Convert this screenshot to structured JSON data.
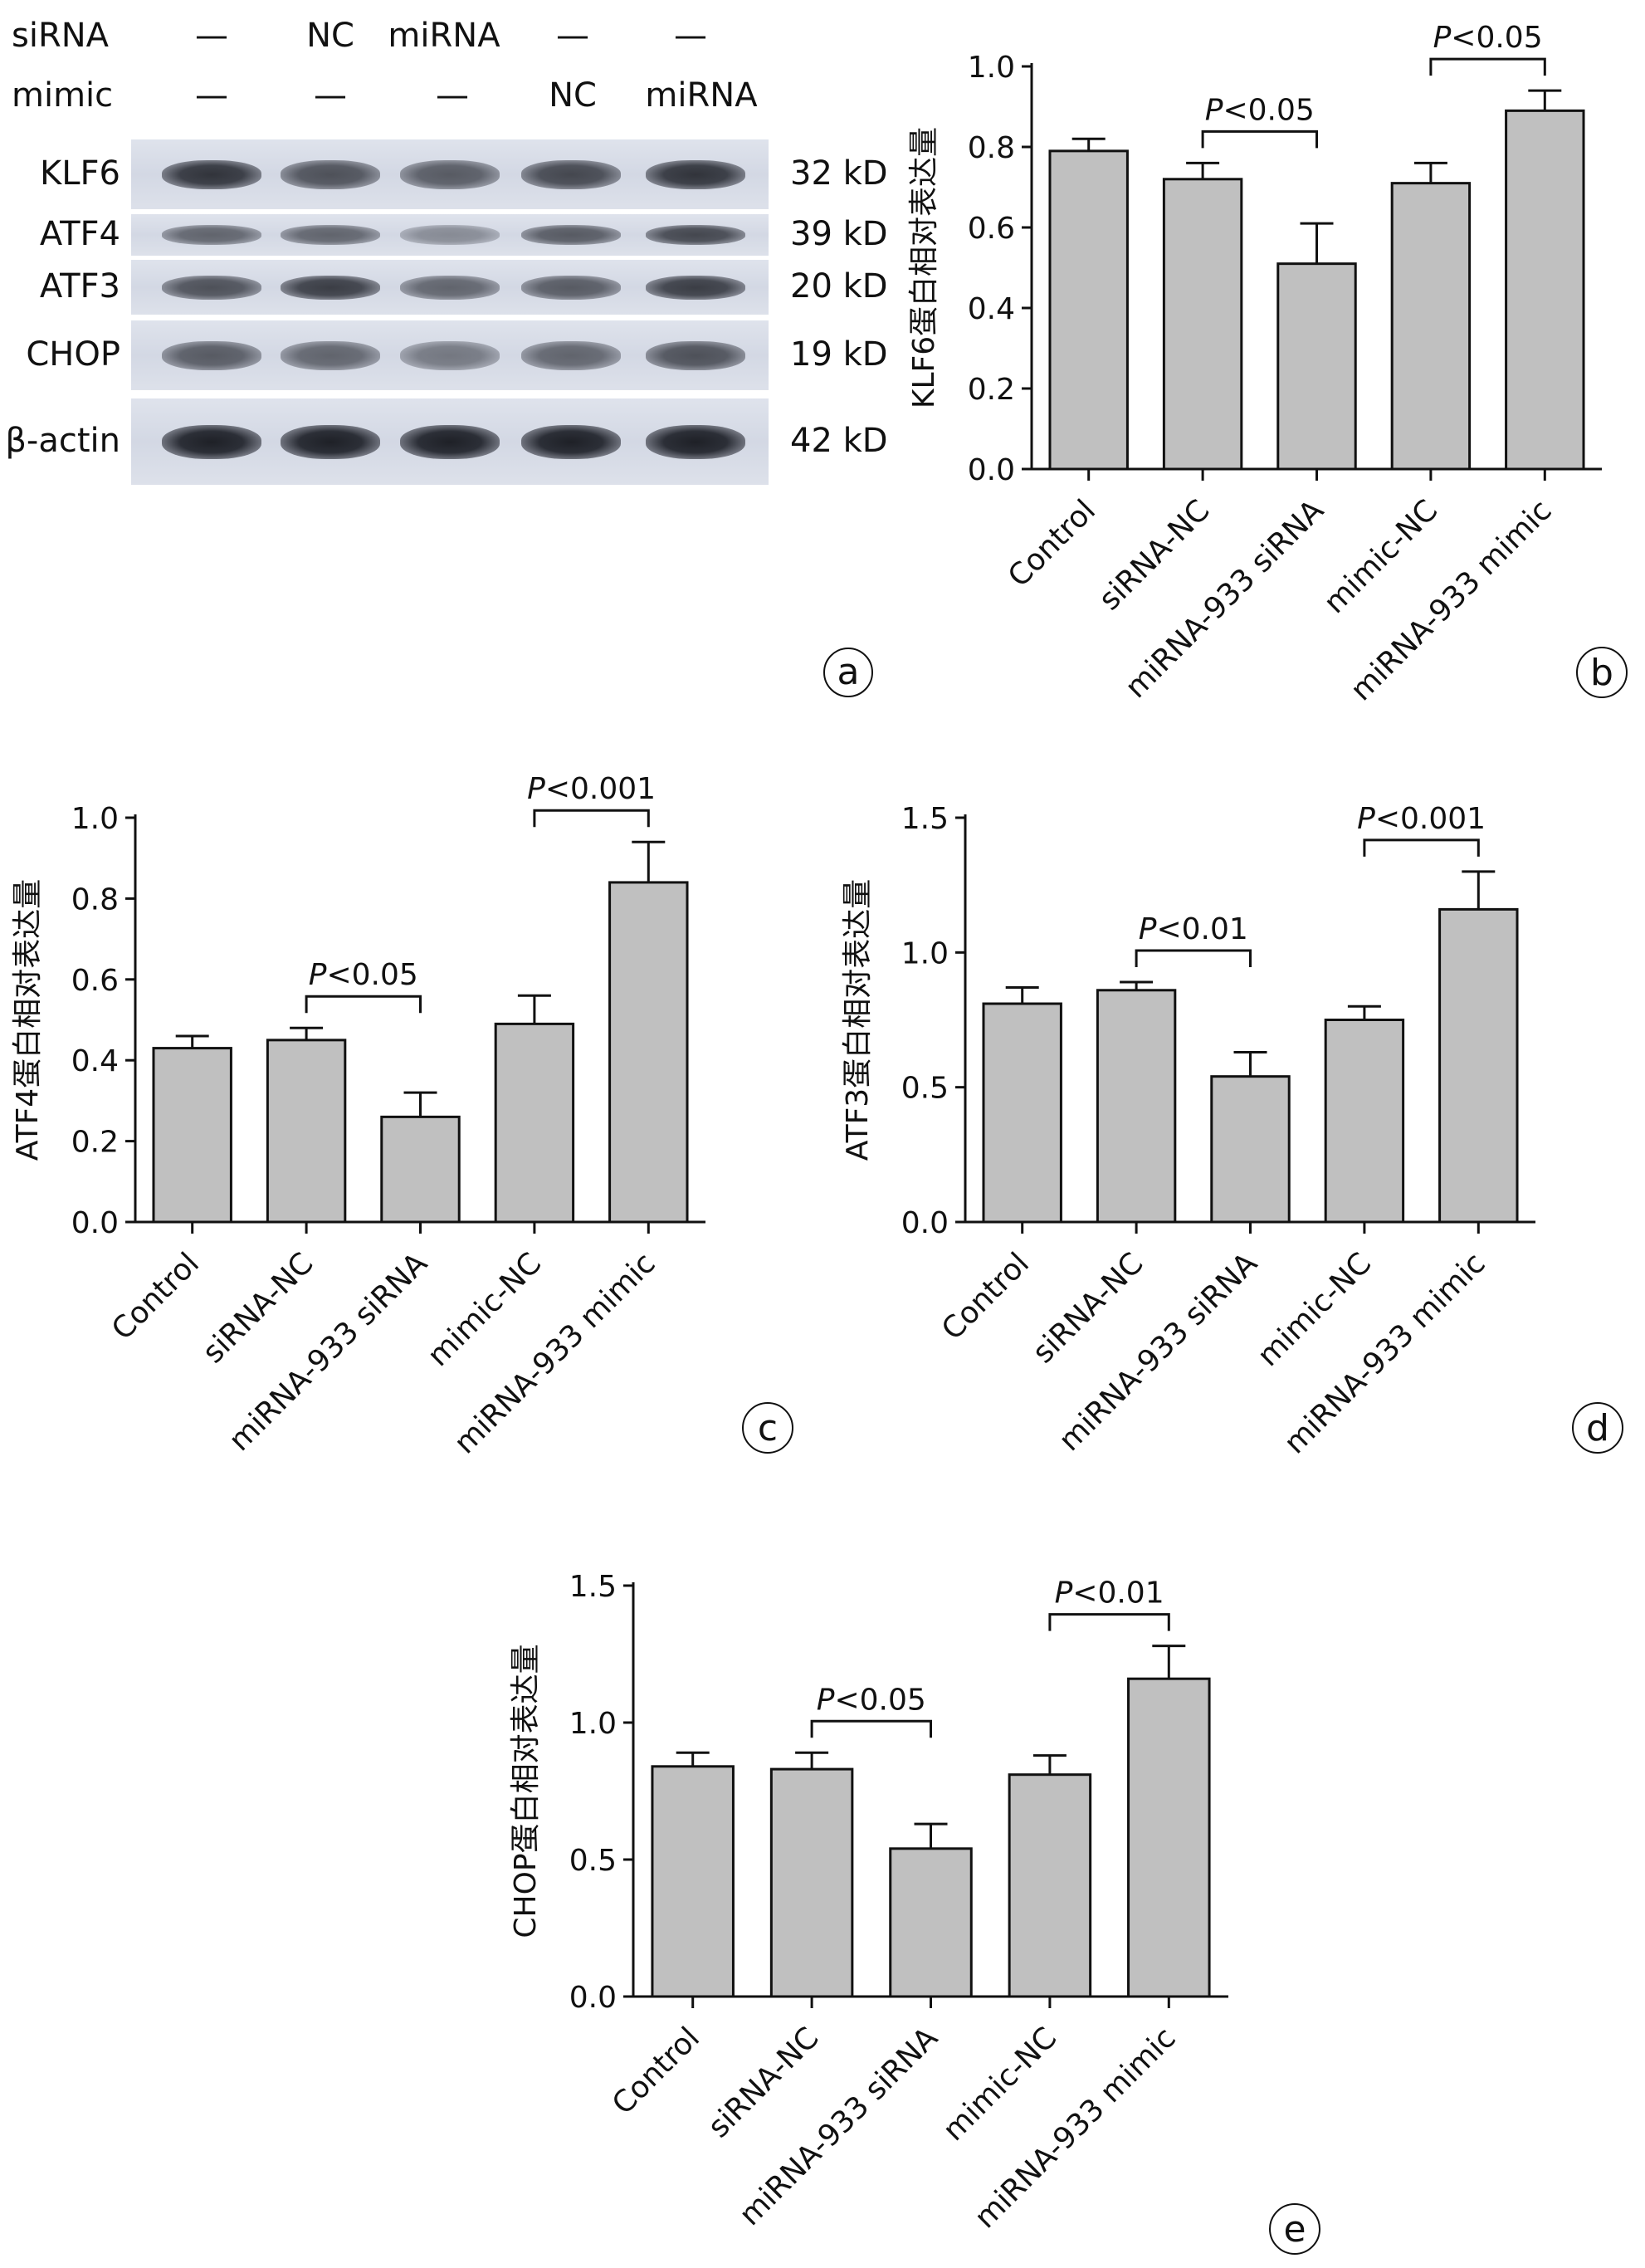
{
  "western_blot": {
    "condition_rows": [
      {
        "label": "siRNA",
        "values": [
          "—",
          "NC",
          "miRNA",
          "—",
          "—"
        ]
      },
      {
        "label": "mimic",
        "values": [
          "—",
          "—",
          "—",
          "NC",
          "miRNA"
        ]
      }
    ],
    "blots": [
      {
        "protein": "KLF6",
        "kd": "32 kD",
        "intensity": [
          0.85,
          0.7,
          0.65,
          0.75,
          0.85
        ]
      },
      {
        "protein": "ATF4",
        "kd": "39 kD",
        "intensity": [
          0.6,
          0.6,
          0.4,
          0.65,
          0.75
        ]
      },
      {
        "protein": "ATF3",
        "kd": "20 kD",
        "intensity": [
          0.7,
          0.8,
          0.6,
          0.65,
          0.8
        ]
      },
      {
        "protein": "CHOP",
        "kd": "19 kD",
        "intensity": [
          0.65,
          0.6,
          0.5,
          0.6,
          0.7
        ]
      },
      {
        "protein": "β-actin",
        "kd": "42 kD",
        "intensity": [
          0.95,
          0.95,
          0.95,
          0.95,
          0.95
        ]
      }
    ],
    "panel_letter": "a"
  },
  "chart_data": [
    {
      "panel": "b",
      "type": "bar",
      "categories": [
        "Control",
        "siRNA-NC",
        "miRNA-933 siRNA",
        "mimic-NC",
        "miRNA-933 mimic"
      ],
      "values": [
        0.79,
        0.72,
        0.51,
        0.71,
        0.89
      ],
      "errors": [
        0.03,
        0.04,
        0.1,
        0.05,
        0.05
      ],
      "ylabel": "KLF6蛋白相对表达量",
      "ylim": [
        0,
        1.0
      ],
      "yticks": [
        "0.0",
        "0.2",
        "0.4",
        "0.6",
        "0.8",
        "1.0"
      ],
      "annotations": [
        {
          "from": 1,
          "to": 2,
          "text": "<0.05"
        },
        {
          "from": 3,
          "to": 4,
          "text": "<0.05"
        }
      ]
    },
    {
      "panel": "c",
      "type": "bar",
      "categories": [
        "Control",
        "siRNA-NC",
        "miRNA-933 siRNA",
        "mimic-NC",
        "miRNA-933 mimic"
      ],
      "values": [
        0.43,
        0.45,
        0.26,
        0.49,
        0.84
      ],
      "errors": [
        0.03,
        0.03,
        0.06,
        0.07,
        0.1
      ],
      "ylabel": "ATF4蛋白相对表达量",
      "ylim": [
        0,
        1.0
      ],
      "yticks": [
        "0.0",
        "0.2",
        "0.4",
        "0.6",
        "0.8",
        "1.0"
      ],
      "annotations": [
        {
          "from": 1,
          "to": 2,
          "text": "<0.05"
        },
        {
          "from": 3,
          "to": 4,
          "text": "<0.001"
        }
      ]
    },
    {
      "panel": "d",
      "type": "bar",
      "categories": [
        "Control",
        "siRNA-NC",
        "miRNA-933 siRNA",
        "mimic-NC",
        "miRNA-933 mimic"
      ],
      "values": [
        0.81,
        0.86,
        0.54,
        0.75,
        1.16
      ],
      "errors": [
        0.06,
        0.03,
        0.09,
        0.05,
        0.14
      ],
      "ylabel": "ATF3蛋白相对表达量",
      "ylim": [
        0,
        1.5
      ],
      "yticks": [
        "0.0",
        "0.5",
        "1.0",
        "1.5"
      ],
      "annotations": [
        {
          "from": 1,
          "to": 2,
          "text": "<0.01"
        },
        {
          "from": 3,
          "to": 4,
          "text": "<0.001"
        }
      ]
    },
    {
      "panel": "e",
      "type": "bar",
      "categories": [
        "Control",
        "siRNA-NC",
        "miRNA-933 siRNA",
        "mimic-NC",
        "miRNA-933 mimic"
      ],
      "values": [
        0.84,
        0.83,
        0.54,
        0.81,
        1.16
      ],
      "errors": [
        0.05,
        0.06,
        0.09,
        0.07,
        0.12
      ],
      "ylabel": "CHOP蛋白相对表达量",
      "ylim": [
        0,
        1.5
      ],
      "yticks": [
        "0.0",
        "0.5",
        "1.0",
        "1.5"
      ],
      "annotations": [
        {
          "from": 1,
          "to": 2,
          "text": "<0.05"
        },
        {
          "from": 3,
          "to": 4,
          "text": "<0.01"
        }
      ]
    }
  ]
}
